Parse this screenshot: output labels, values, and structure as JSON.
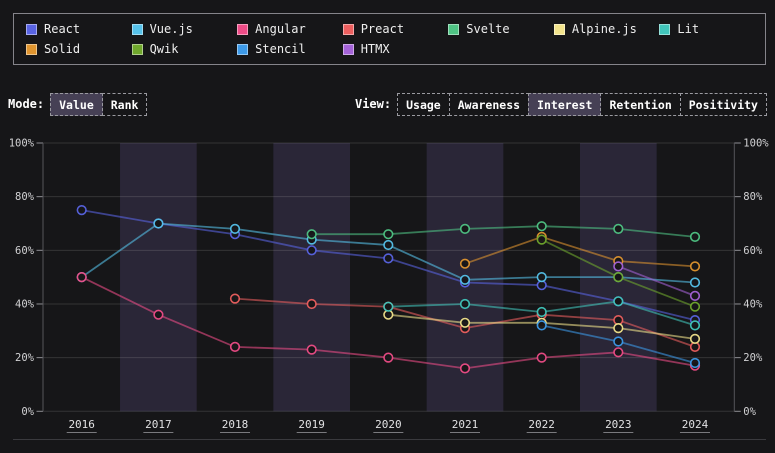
{
  "legend": {
    "items": [
      {
        "label": "React",
        "color": "#5964e3"
      },
      {
        "label": "Vue.js",
        "color": "#56c2ea"
      },
      {
        "label": "Angular",
        "color": "#ee4c87"
      },
      {
        "label": "Preact",
        "color": "#ec5f5f"
      },
      {
        "label": "Svelte",
        "color": "#4fc484"
      },
      {
        "label": "Alpine.js",
        "color": "#f2e38b"
      },
      {
        "label": "Lit",
        "color": "#41c6bb"
      },
      {
        "label": "Solid",
        "color": "#e0952f"
      },
      {
        "label": "Qwik",
        "color": "#70a82d"
      },
      {
        "label": "Stencil",
        "color": "#3d9ae8"
      },
      {
        "label": "HTMX",
        "color": "#a563d8"
      }
    ]
  },
  "controls": {
    "selected_bg": "#464055",
    "mode": {
      "label": "Mode:",
      "options": [
        {
          "label": "Value",
          "selected": true
        },
        {
          "label": "Rank",
          "selected": false
        }
      ]
    },
    "view": {
      "label": "View:",
      "options": [
        {
          "label": "Usage",
          "selected": false
        },
        {
          "label": "Awareness",
          "selected": false
        },
        {
          "label": "Interest",
          "selected": true
        },
        {
          "label": "Retention",
          "selected": false
        },
        {
          "label": "Positivity",
          "selected": false
        }
      ]
    }
  },
  "chart_data": {
    "type": "line",
    "x": [
      2016,
      2017,
      2018,
      2019,
      2020,
      2021,
      2022,
      2023,
      2024
    ],
    "x_labels": [
      "2016",
      "2017",
      "2018",
      "2019",
      "2020",
      "2021",
      "2022",
      "2023",
      "2024"
    ],
    "ylim": [
      0,
      100
    ],
    "y_ticks": [
      {
        "v": 100,
        "label": "100%"
      },
      {
        "v": 80,
        "label": "80%"
      },
      {
        "v": 60,
        "label": "60%"
      },
      {
        "v": 40,
        "label": "40%"
      },
      {
        "v": 20,
        "label": "20%"
      },
      {
        "v": 0,
        "label": "0%"
      }
    ],
    "grid": true,
    "legend_position": "top",
    "highlight_years": [
      2017,
      2019,
      2021,
      2023
    ],
    "band_color": "#2a2637",
    "series": [
      {
        "name": "React",
        "color": "#5964e3",
        "values": [
          75,
          70,
          66,
          60,
          57,
          48,
          47,
          41,
          34
        ]
      },
      {
        "name": "Vue.js",
        "color": "#56c2ea",
        "values": [
          50,
          70,
          68,
          64,
          62,
          49,
          50,
          50,
          48
        ]
      },
      {
        "name": "Angular",
        "color": "#ee4c87",
        "values": [
          50,
          36,
          24,
          23,
          20,
          16,
          20,
          22,
          17
        ]
      },
      {
        "name": "Preact",
        "color": "#ec5f5f",
        "values": [
          null,
          null,
          42,
          40,
          39,
          31,
          36,
          34,
          24
        ]
      },
      {
        "name": "Svelte",
        "color": "#4fc484",
        "values": [
          null,
          null,
          null,
          66,
          66,
          68,
          69,
          68,
          65
        ]
      },
      {
        "name": "Alpine.js",
        "color": "#f2e38b",
        "values": [
          null,
          null,
          null,
          null,
          36,
          33,
          33,
          31,
          27
        ]
      },
      {
        "name": "Lit",
        "color": "#41c6bb",
        "values": [
          null,
          null,
          null,
          null,
          39,
          40,
          37,
          41,
          32
        ]
      },
      {
        "name": "Solid",
        "color": "#e0952f",
        "values": [
          null,
          null,
          null,
          null,
          null,
          55,
          65,
          56,
          54
        ]
      },
      {
        "name": "Qwik",
        "color": "#70a82d",
        "values": [
          null,
          null,
          null,
          null,
          null,
          null,
          64,
          50,
          39
        ]
      },
      {
        "name": "Stencil",
        "color": "#3d9ae8",
        "values": [
          null,
          null,
          null,
          null,
          null,
          null,
          32,
          26,
          18
        ]
      },
      {
        "name": "HTMX",
        "color": "#a563d8",
        "values": [
          null,
          null,
          null,
          null,
          null,
          null,
          null,
          54,
          43
        ]
      }
    ]
  }
}
